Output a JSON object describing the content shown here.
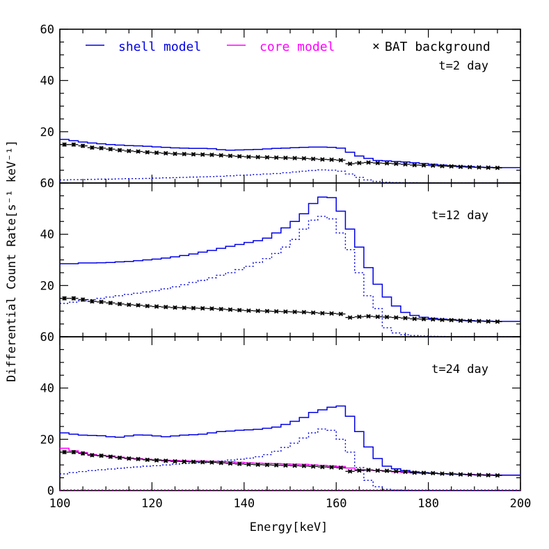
{
  "chart_data": {
    "type": "line",
    "xlabel": "Energy[keV]",
    "ylabel": "Differential Count Rate[s⁻¹ keV⁻¹]",
    "xlim": [
      100,
      200
    ],
    "ylim": [
      0,
      60
    ],
    "x_ticks": [
      "100",
      "120",
      "140",
      "160",
      "180",
      "200"
    ],
    "y_ticks": [
      "0",
      "20",
      "40",
      "60"
    ],
    "colors": {
      "shell": "#0000e6",
      "core": "#ff00ff",
      "background": "#000000"
    },
    "legend": [
      {
        "label": "shell model",
        "color": "#0000e6",
        "symbol": "line"
      },
      {
        "label": "core model",
        "color": "#ff00ff",
        "symbol": "line"
      },
      {
        "label": "BAT background",
        "color": "#000000",
        "symbol": "×"
      }
    ],
    "bin_edges": [
      100,
      102,
      104,
      106,
      108,
      110,
      112,
      114,
      116,
      118,
      120,
      122,
      124,
      126,
      128,
      130,
      132,
      134,
      136,
      138,
      140,
      142,
      144,
      146,
      148,
      150,
      152,
      154,
      156,
      158,
      160,
      162,
      164,
      166,
      168,
      170,
      172,
      174,
      176,
      178,
      180,
      182,
      184,
      186,
      188,
      190,
      192,
      194,
      196,
      198,
      200
    ],
    "background": {
      "x": [
        101,
        103,
        105,
        107,
        109,
        111,
        113,
        115,
        117,
        119,
        121,
        123,
        125,
        127,
        129,
        131,
        133,
        135,
        137,
        139,
        141,
        143,
        145,
        147,
        149,
        151,
        153,
        155,
        157,
        159,
        161,
        163,
        165,
        167,
        169,
        171,
        173,
        175,
        177,
        179,
        181,
        183,
        185,
        187,
        189,
        191,
        193,
        195
      ],
      "y": [
        15.0,
        15.0,
        14.5,
        13.8,
        13.6,
        13.2,
        12.8,
        12.5,
        12.3,
        12.0,
        11.8,
        11.6,
        11.4,
        11.3,
        11.2,
        11.1,
        11.0,
        10.8,
        10.6,
        10.4,
        10.2,
        10.1,
        10.0,
        9.9,
        9.8,
        9.7,
        9.6,
        9.4,
        9.2,
        9.1,
        8.9,
        7.5,
        7.8,
        8.0,
        7.8,
        7.7,
        7.5,
        7.3,
        7.0,
        6.9,
        6.8,
        6.6,
        6.5,
        6.3,
        6.2,
        6.1,
        6.0,
        5.9
      ],
      "err": [
        0.8,
        0.8,
        0.8,
        0.7,
        0.7,
        0.7,
        0.7,
        0.6,
        0.6,
        0.6,
        0.6,
        0.6,
        0.6,
        0.6,
        0.6,
        0.6,
        0.6,
        0.6,
        0.6,
        0.6,
        0.5,
        0.5,
        0.5,
        0.5,
        0.5,
        0.5,
        0.5,
        0.5,
        0.5,
        0.5,
        0.5,
        0.5,
        0.5,
        0.5,
        0.5,
        0.5,
        0.5,
        0.5,
        0.5,
        0.5,
        0.5,
        0.5,
        0.5,
        0.5,
        0.5,
        0.5,
        0.5,
        0.5
      ]
    },
    "panels": [
      {
        "label": "t=2 day",
        "shell_total": [
          17.0,
          16.5,
          16.0,
          15.6,
          15.3,
          15.0,
          14.8,
          14.6,
          14.5,
          14.3,
          14.1,
          13.9,
          13.7,
          13.6,
          13.5,
          13.5,
          13.4,
          13.0,
          12.8,
          12.9,
          13.0,
          13.1,
          13.3,
          13.5,
          13.6,
          13.8,
          13.9,
          14.0,
          14.0,
          13.9,
          13.6,
          12.0,
          10.5,
          9.6,
          8.8,
          8.6,
          8.4,
          8.2,
          7.9,
          7.6,
          7.3,
          7.0,
          6.8,
          6.6,
          6.4,
          6.2,
          6.1,
          6.0,
          6.0,
          6.0
        ],
        "shell_dotted": [
          1.2,
          1.3,
          1.3,
          1.4,
          1.5,
          1.5,
          1.6,
          1.7,
          1.7,
          1.8,
          1.9,
          2.0,
          2.1,
          2.2,
          2.3,
          2.4,
          2.5,
          2.6,
          2.8,
          3.0,
          3.1,
          3.3,
          3.5,
          3.7,
          4.0,
          4.3,
          4.6,
          4.9,
          5.1,
          5.0,
          4.6,
          3.5,
          2.2,
          1.2,
          0.6,
          0.3,
          0.2,
          0.1,
          0.1,
          0.0,
          0.0,
          0.0,
          0.0,
          0.0,
          0.0,
          0.0,
          0.0,
          0.0,
          0.0,
          0.0
        ]
      },
      {
        "label": "t=12 day",
        "shell_total": [
          28.5,
          28.5,
          28.8,
          28.8,
          28.9,
          29.0,
          29.2,
          29.4,
          29.7,
          30.0,
          30.3,
          30.7,
          31.2,
          31.7,
          32.3,
          33.0,
          33.7,
          34.5,
          35.3,
          36.0,
          36.8,
          37.5,
          38.5,
          40.5,
          42.5,
          45.0,
          48.0,
          52.0,
          54.5,
          54.3,
          49.0,
          42.0,
          35.0,
          27.0,
          20.5,
          15.5,
          12.0,
          9.5,
          8.3,
          7.6,
          7.2,
          6.9,
          6.7,
          6.5,
          6.3,
          6.2,
          6.1,
          6.0,
          6.0,
          6.0
        ],
        "shell_dotted": [
          13.0,
          13.5,
          14.0,
          14.5,
          15.0,
          15.5,
          16.0,
          16.5,
          17.0,
          17.5,
          18.0,
          18.7,
          19.5,
          20.3,
          21.2,
          22.0,
          23.0,
          24.0,
          25.0,
          26.2,
          27.5,
          29.0,
          30.5,
          32.5,
          35.0,
          38.0,
          42.0,
          45.5,
          47.0,
          46.0,
          40.5,
          34.0,
          25.0,
          16.0,
          11.0,
          3.5,
          1.5,
          0.8,
          0.5,
          0.3,
          0.2,
          0.1,
          0.0,
          0.0,
          0.0,
          0.0,
          0.0,
          0.0,
          0.0,
          0.0
        ]
      },
      {
        "label": "t=24 day",
        "shell_total": [
          22.5,
          22.0,
          21.6,
          21.5,
          21.4,
          21.0,
          20.8,
          21.3,
          21.7,
          21.6,
          21.3,
          21.0,
          21.3,
          21.6,
          21.8,
          22.0,
          22.5,
          23.0,
          23.2,
          23.5,
          23.7,
          23.9,
          24.3,
          24.8,
          25.8,
          27.0,
          28.5,
          30.5,
          31.5,
          32.5,
          33.0,
          29.0,
          23.0,
          17.0,
          12.5,
          9.5,
          8.5,
          7.8,
          7.3,
          7.0,
          6.8,
          6.6,
          6.4,
          6.3,
          6.2,
          6.1,
          6.0,
          6.0,
          6.0,
          6.0
        ],
        "shell_dotted": [
          6.5,
          7.0,
          7.4,
          7.8,
          8.1,
          8.4,
          8.7,
          9.0,
          9.2,
          9.5,
          9.7,
          10.0,
          10.3,
          10.5,
          10.7,
          10.9,
          11.2,
          11.5,
          11.9,
          12.2,
          12.6,
          13.2,
          14.0,
          15.3,
          16.8,
          18.5,
          20.5,
          22.5,
          24.0,
          23.5,
          20.0,
          15.0,
          9.0,
          4.0,
          1.5,
          0.5,
          0.2,
          0.1,
          0.0,
          0.0,
          0.0,
          0.0,
          0.0,
          0.0,
          0.0,
          0.0,
          0.0,
          0.0,
          0.0,
          0.0
        ],
        "core_total": [
          16.5,
          15.5,
          14.8,
          14.0,
          13.7,
          13.5,
          13.0,
          12.7,
          12.4,
          12.2,
          12.0,
          11.8,
          11.7,
          11.6,
          11.5,
          11.5,
          11.4,
          11.3,
          11.2,
          11.0,
          10.8,
          10.7,
          10.6,
          10.5,
          10.4,
          10.3,
          10.2,
          10.0,
          9.8,
          9.6,
          9.4,
          8.8,
          8.2,
          8.0,
          7.8,
          7.5,
          7.3,
          7.1,
          6.9,
          6.8,
          6.7,
          6.6,
          6.5,
          6.4,
          6.3,
          6.2,
          6.1,
          6.0,
          6.0,
          6.0
        ],
        "core_dotted": [
          0.3,
          0.3,
          0.3,
          0.3,
          0.3,
          0.3,
          0.3,
          0.3,
          0.3,
          0.3,
          0.3,
          0.3,
          0.3,
          0.3,
          0.3,
          0.3,
          0.3,
          0.3,
          0.3,
          0.3,
          0.3,
          0.3,
          0.3,
          0.3,
          0.3,
          0.3,
          0.3,
          0.3,
          0.3,
          0.3,
          0.3,
          0.3,
          0.3,
          0.3,
          0.3,
          0.3,
          0.3,
          0.3,
          0.3,
          0.3,
          0.3,
          0.3,
          0.3,
          0.3,
          0.3,
          0.3,
          0.3,
          0.3,
          0.3,
          0.3
        ]
      }
    ]
  }
}
